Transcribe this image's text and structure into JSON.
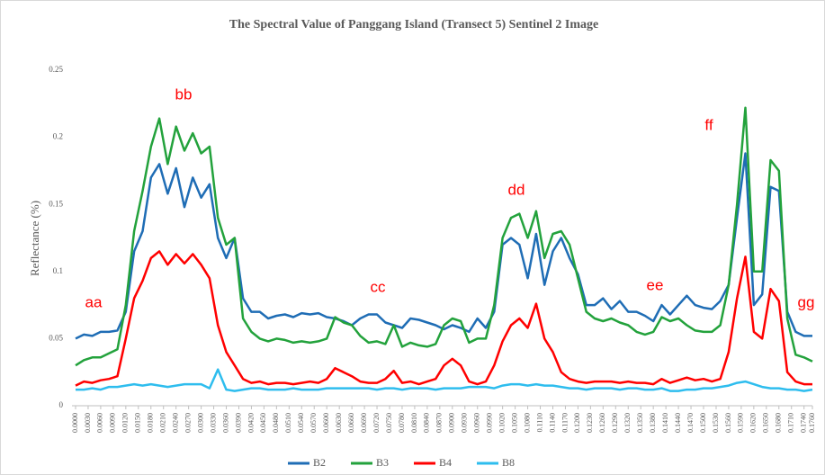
{
  "chart_data": {
    "type": "line",
    "title": "The Spectral Value of Panggang Island (Transect 5) Sentinel 2 Image",
    "y_label": "Reflectance (%)",
    "annotations": [
      "aa",
      "bb",
      "cc",
      "dd",
      "ee",
      "ff",
      "gg"
    ],
    "x": [
      0,
      0.002,
      0.004,
      0.006,
      0.008,
      0.01,
      0.012,
      0.014,
      0.016,
      0.018,
      0.02,
      0.022,
      0.024,
      0.026,
      0.028,
      0.03,
      0.032,
      0.034,
      0.036,
      0.038,
      0.04,
      0.042,
      0.044,
      0.046,
      0.048,
      0.05,
      0.052,
      0.054,
      0.056,
      0.058,
      0.06,
      0.062,
      0.064,
      0.066,
      0.068,
      0.07,
      0.072,
      0.074,
      0.076,
      0.078,
      0.08,
      0.082,
      0.084,
      0.086,
      0.088,
      0.09,
      0.092,
      0.094,
      0.096,
      0.098,
      0.1,
      0.102,
      0.104,
      0.106,
      0.108,
      0.11,
      0.112,
      0.114,
      0.116,
      0.118,
      0.12,
      0.122,
      0.124,
      0.126,
      0.128,
      0.13,
      0.132,
      0.134,
      0.136,
      0.138,
      0.14,
      0.142,
      0.144,
      0.146,
      0.148,
      0.15,
      0.152,
      0.154,
      0.156,
      0.158,
      0.16,
      0.162,
      0.164,
      0.166,
      0.168,
      0.17,
      0.172,
      0.174,
      0.176
    ],
    "series": [
      {
        "name": "B2",
        "color": "#1f6db5",
        "values": [
          0.05,
          0.053,
          0.052,
          0.055,
          0.055,
          0.056,
          0.07,
          0.115,
          0.13,
          0.17,
          0.18,
          0.158,
          0.177,
          0.148,
          0.17,
          0.155,
          0.165,
          0.125,
          0.11,
          0.125,
          0.08,
          0.07,
          0.07,
          0.065,
          0.067,
          0.068,
          0.066,
          0.069,
          0.068,
          0.069,
          0.066,
          0.065,
          0.063,
          0.06,
          0.065,
          0.068,
          0.068,
          0.062,
          0.06,
          0.058,
          0.065,
          0.064,
          0.062,
          0.06,
          0.057,
          0.06,
          0.058,
          0.055,
          0.065,
          0.058,
          0.07,
          0.12,
          0.125,
          0.12,
          0.095,
          0.128,
          0.09,
          0.115,
          0.125,
          0.11,
          0.098,
          0.075,
          0.075,
          0.08,
          0.072,
          0.078,
          0.07,
          0.07,
          0.067,
          0.063,
          0.075,
          0.068,
          0.075,
          0.082,
          0.075,
          0.073,
          0.072,
          0.078,
          0.09,
          0.14,
          0.188,
          0.075,
          0.083,
          0.163,
          0.16,
          0.07,
          0.055,
          0.052,
          0.052
        ]
      },
      {
        "name": "B3",
        "color": "#23a23c",
        "values": [
          0.03,
          0.034,
          0.036,
          0.036,
          0.039,
          0.042,
          0.075,
          0.13,
          0.16,
          0.193,
          0.214,
          0.18,
          0.208,
          0.19,
          0.203,
          0.188,
          0.193,
          0.14,
          0.12,
          0.125,
          0.065,
          0.055,
          0.05,
          0.048,
          0.05,
          0.049,
          0.047,
          0.048,
          0.047,
          0.048,
          0.05,
          0.066,
          0.062,
          0.06,
          0.052,
          0.047,
          0.048,
          0.046,
          0.06,
          0.044,
          0.047,
          0.045,
          0.044,
          0.046,
          0.06,
          0.065,
          0.063,
          0.047,
          0.05,
          0.05,
          0.075,
          0.125,
          0.14,
          0.143,
          0.125,
          0.145,
          0.11,
          0.128,
          0.13,
          0.12,
          0.095,
          0.07,
          0.065,
          0.063,
          0.065,
          0.062,
          0.06,
          0.055,
          0.053,
          0.055,
          0.066,
          0.063,
          0.065,
          0.06,
          0.056,
          0.055,
          0.055,
          0.06,
          0.09,
          0.15,
          0.222,
          0.1,
          0.1,
          0.183,
          0.175,
          0.065,
          0.038,
          0.036,
          0.033
        ]
      },
      {
        "name": "B4",
        "color": "#ff0000",
        "values": [
          0.015,
          0.018,
          0.017,
          0.019,
          0.02,
          0.022,
          0.05,
          0.08,
          0.093,
          0.11,
          0.115,
          0.105,
          0.113,
          0.106,
          0.113,
          0.105,
          0.095,
          0.06,
          0.04,
          0.03,
          0.02,
          0.017,
          0.018,
          0.016,
          0.017,
          0.017,
          0.016,
          0.017,
          0.018,
          0.017,
          0.02,
          0.028,
          0.025,
          0.022,
          0.018,
          0.017,
          0.017,
          0.02,
          0.026,
          0.017,
          0.018,
          0.016,
          0.018,
          0.02,
          0.03,
          0.035,
          0.03,
          0.018,
          0.016,
          0.018,
          0.03,
          0.048,
          0.06,
          0.065,
          0.058,
          0.076,
          0.05,
          0.04,
          0.025,
          0.02,
          0.018,
          0.017,
          0.018,
          0.018,
          0.018,
          0.017,
          0.018,
          0.017,
          0.017,
          0.016,
          0.02,
          0.017,
          0.019,
          0.021,
          0.019,
          0.02,
          0.018,
          0.02,
          0.04,
          0.08,
          0.111,
          0.055,
          0.05,
          0.087,
          0.078,
          0.025,
          0.018,
          0.016,
          0.016
        ]
      },
      {
        "name": "B8",
        "color": "#2ebdee",
        "values": [
          0.012,
          0.012,
          0.013,
          0.012,
          0.014,
          0.014,
          0.015,
          0.016,
          0.015,
          0.016,
          0.015,
          0.014,
          0.015,
          0.016,
          0.016,
          0.016,
          0.013,
          0.027,
          0.012,
          0.011,
          0.012,
          0.013,
          0.013,
          0.012,
          0.012,
          0.012,
          0.013,
          0.012,
          0.012,
          0.012,
          0.013,
          0.013,
          0.013,
          0.013,
          0.013,
          0.013,
          0.012,
          0.013,
          0.013,
          0.012,
          0.013,
          0.013,
          0.013,
          0.012,
          0.013,
          0.013,
          0.013,
          0.014,
          0.014,
          0.014,
          0.013,
          0.015,
          0.016,
          0.016,
          0.015,
          0.016,
          0.015,
          0.015,
          0.014,
          0.013,
          0.013,
          0.012,
          0.013,
          0.013,
          0.013,
          0.012,
          0.013,
          0.013,
          0.012,
          0.012,
          0.013,
          0.011,
          0.011,
          0.012,
          0.012,
          0.013,
          0.013,
          0.014,
          0.015,
          0.017,
          0.018,
          0.016,
          0.014,
          0.013,
          0.013,
          0.012,
          0.012,
          0.011,
          0.012
        ]
      }
    ],
    "xlim": [
      0,
      0.176
    ],
    "xticks": [
      {
        "value": 0,
        "label": "0.0000"
      },
      {
        "value": 0.003,
        "label": "0.0030"
      },
      {
        "value": 0.006,
        "label": "0.0060"
      },
      {
        "value": 0.009,
        "label": "0.0090"
      },
      {
        "value": 0.012,
        "label": "0.0120"
      },
      {
        "value": 0.015,
        "label": "0.0150"
      },
      {
        "value": 0.018,
        "label": "0.0180"
      },
      {
        "value": 0.021,
        "label": "0.0210"
      },
      {
        "value": 0.024,
        "label": "0.0240"
      },
      {
        "value": 0.027,
        "label": "0.0270"
      },
      {
        "value": 0.03,
        "label": "0.0300"
      },
      {
        "value": 0.033,
        "label": "0.0330"
      },
      {
        "value": 0.036,
        "label": "0.0360"
      },
      {
        "value": 0.039,
        "label": "0.0390"
      },
      {
        "value": 0.042,
        "label": "0.0420"
      },
      {
        "value": 0.045,
        "label": "0.0450"
      },
      {
        "value": 0.048,
        "label": "0.0480"
      },
      {
        "value": 0.051,
        "label": "0.0510"
      },
      {
        "value": 0.054,
        "label": "0.0540"
      },
      {
        "value": 0.057,
        "label": "0.0570"
      },
      {
        "value": 0.06,
        "label": "0.0600"
      },
      {
        "value": 0.063,
        "label": "0.0630"
      },
      {
        "value": 0.066,
        "label": "0.0660"
      },
      {
        "value": 0.069,
        "label": "0.0690"
      },
      {
        "value": 0.072,
        "label": "0.0720"
      },
      {
        "value": 0.075,
        "label": "0.0750"
      },
      {
        "value": 0.078,
        "label": "0.0780"
      },
      {
        "value": 0.081,
        "label": "0.0810"
      },
      {
        "value": 0.084,
        "label": "0.0840"
      },
      {
        "value": 0.087,
        "label": "0.0870"
      },
      {
        "value": 0.09,
        "label": "0.0900"
      },
      {
        "value": 0.093,
        "label": "0.0930"
      },
      {
        "value": 0.096,
        "label": "0.0960"
      },
      {
        "value": 0.099,
        "label": "0.0990"
      },
      {
        "value": 0.102,
        "label": "0.1020"
      },
      {
        "value": 0.105,
        "label": "0.1050"
      },
      {
        "value": 0.108,
        "label": "0.1080"
      },
      {
        "value": 0.111,
        "label": "0.1110"
      },
      {
        "value": 0.114,
        "label": "0.1140"
      },
      {
        "value": 0.117,
        "label": "0.1170"
      },
      {
        "value": 0.12,
        "label": "0.1200"
      },
      {
        "value": 0.123,
        "label": "0.1230"
      },
      {
        "value": 0.126,
        "label": "0.1260"
      },
      {
        "value": 0.129,
        "label": "0.1290"
      },
      {
        "value": 0.132,
        "label": "0.1320"
      },
      {
        "value": 0.135,
        "label": "0.1350"
      },
      {
        "value": 0.138,
        "label": "0.1380"
      },
      {
        "value": 0.141,
        "label": "0.1410"
      },
      {
        "value": 0.144,
        "label": "0.1440"
      },
      {
        "value": 0.147,
        "label": "0.1470"
      },
      {
        "value": 0.15,
        "label": "0.1500"
      },
      {
        "value": 0.153,
        "label": "0.1530"
      },
      {
        "value": 0.156,
        "label": "0.1560"
      },
      {
        "value": 0.159,
        "label": "0.1590"
      },
      {
        "value": 0.162,
        "label": "0.1620"
      },
      {
        "value": 0.165,
        "label": "0.1650"
      },
      {
        "value": 0.168,
        "label": "0.1680"
      },
      {
        "value": 0.171,
        "label": "0.1710"
      },
      {
        "value": 0.174,
        "label": "0.1740"
      },
      {
        "value": 0.176,
        "label": "0.1760"
      }
    ],
    "ylim": [
      0,
      0.25
    ],
    "yticks": [
      0,
      0.05,
      0.1,
      0.15,
      0.2,
      0.25
    ],
    "grid": false,
    "legend": "bottom"
  }
}
